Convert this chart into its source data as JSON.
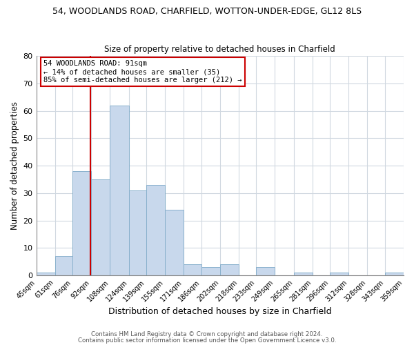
{
  "title": "54, WOODLANDS ROAD, CHARFIELD, WOTTON-UNDER-EDGE, GL12 8LS",
  "subtitle": "Size of property relative to detached houses in Charfield",
  "xlabel": "Distribution of detached houses by size in Charfield",
  "ylabel": "Number of detached properties",
  "bar_color": "#c8d8ec",
  "bar_edge_color": "#88b0cc",
  "vline_x": 91,
  "vline_color": "#cc0000",
  "annotation_title": "54 WOODLANDS ROAD: 91sqm",
  "annotation_line1": "← 14% of detached houses are smaller (35)",
  "annotation_line2": "85% of semi-detached houses are larger (212) →",
  "annotation_box_color": "#ffffff",
  "annotation_box_edge": "#cc0000",
  "bins": [
    45,
    61,
    76,
    92,
    108,
    124,
    139,
    155,
    171,
    186,
    202,
    218,
    233,
    249,
    265,
    281,
    296,
    312,
    328,
    343,
    359
  ],
  "bin_labels": [
    "45sqm",
    "61sqm",
    "76sqm",
    "92sqm",
    "108sqm",
    "124sqm",
    "139sqm",
    "155sqm",
    "171sqm",
    "186sqm",
    "202sqm",
    "218sqm",
    "233sqm",
    "249sqm",
    "265sqm",
    "281sqm",
    "296sqm",
    "312sqm",
    "328sqm",
    "343sqm",
    "359sqm"
  ],
  "heights": [
    1,
    7,
    38,
    35,
    62,
    31,
    33,
    24,
    4,
    3,
    4,
    0,
    3,
    0,
    1,
    0,
    1,
    0,
    0,
    1
  ],
  "ylim": [
    0,
    80
  ],
  "yticks": [
    0,
    10,
    20,
    30,
    40,
    50,
    60,
    70,
    80
  ],
  "footer1": "Contains HM Land Registry data © Crown copyright and database right 2024.",
  "footer2": "Contains public sector information licensed under the Open Government Licence v3.0.",
  "background_color": "#ffffff",
  "plot_bg_color": "#ffffff",
  "grid_color": "#d0d8e0"
}
